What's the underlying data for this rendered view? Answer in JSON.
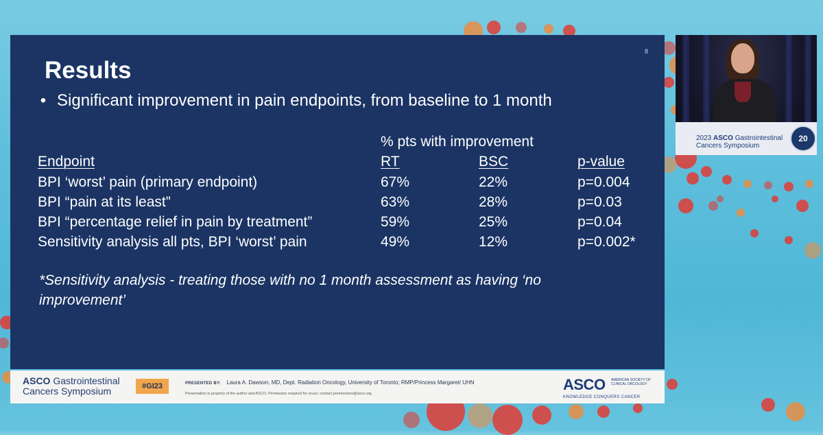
{
  "slide": {
    "number": "8",
    "title": "Results",
    "bullet": "Significant improvement in pain endpoints, from baseline to 1 month",
    "table": {
      "group_header": "% pts with improvement",
      "columns": [
        "Endpoint",
        "RT",
        "BSC",
        "p-value"
      ],
      "rows": [
        [
          "BPI ‘worst’ pain (primary endpoint)",
          "67%",
          "22%",
          "p=0.004"
        ],
        [
          "BPI “pain at its least”",
          "63%",
          "28%",
          "p=0.03"
        ],
        [
          "BPI “percentage relief in pain by treatment”",
          "59%",
          "25%",
          "p=0.04"
        ],
        [
          "Sensitivity analysis all pts, BPI ‘worst’ pain",
          "49%",
          "12%",
          "p=0.002*"
        ]
      ]
    },
    "footnote": "*Sensitivity analysis - treating those with no 1 month assessment as having ‘no improvement’"
  },
  "footer": {
    "logo_brand": "ASCO",
    "logo_line1": "Gastrointestinal",
    "logo_line2": "Cancers Symposium",
    "hashtag": "#GI23",
    "presented_label": "PRESENTED BY:",
    "presenter": "Laura A. Dawson, MD, Dept. Radiation Oncology, University of Toronto; RMP/Princess Margaret/ UHN",
    "permission_note": "Presentation is property of the author and ASCO. Permission required for reuse; contact permissions@asco.org.",
    "asco_wordmark": "ASCO",
    "asco_society": "AMERICAN SOCIETY OF CLINICAL ONCOLOGY",
    "asco_tagline": "KNOWLEDGE CONQUERS CANCER"
  },
  "video": {
    "podium_year": "2023",
    "podium_brand": "ASCO",
    "podium_line1": "Gastrointestinal",
    "podium_line2": "Cancers Symposium",
    "anniversary": "20"
  },
  "colors": {
    "slide_bg": "#1b3464",
    "background": "#5fbfdc",
    "hashtag_bg": "#f1a64d",
    "accent_red": "#e8332a"
  }
}
